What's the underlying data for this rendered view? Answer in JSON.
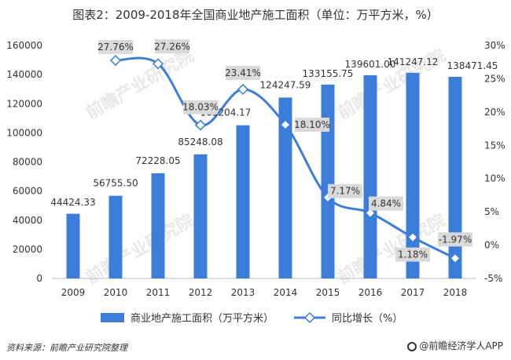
{
  "title": "图表2：2009-2018年全国商业地产施工面积（单位：万平方米，%）",
  "source": "资料来源：前瞻产业研究院整理",
  "brand": "@前瞻经济学人APP",
  "watermark": "前瞻产业研究院",
  "colors": {
    "bar": "#3b7dd8",
    "line": "#3b7dd8",
    "label_bg": "#d9d9d9"
  },
  "chart_data": {
    "type": "bar",
    "categories": [
      "2009",
      "2010",
      "2011",
      "2012",
      "2013",
      "2014",
      "2015",
      "2016",
      "2017",
      "2018"
    ],
    "series": [
      {
        "name": "商业地产施工面积（万平方米）",
        "type": "bar",
        "axis": "left",
        "values": [
          44424.33,
          56755.5,
          72228.05,
          85248.08,
          105204.17,
          124247.59,
          133155.75,
          139601.0,
          141247.12,
          138471.45
        ],
        "labels": [
          "44424.33",
          "56755.50",
          "72228.05",
          "85248.08",
          "105204.17",
          "124247.59",
          "133155.75",
          "139601.00",
          "141247.12",
          "138471.45"
        ]
      },
      {
        "name": "同比增长（%）",
        "type": "line",
        "axis": "right",
        "values": [
          null,
          27.76,
          27.26,
          18.03,
          23.41,
          18.1,
          7.17,
          4.84,
          1.18,
          -1.97
        ],
        "labels": [
          "",
          "27.76%",
          "27.26%",
          "18.03%",
          "23.41%",
          "18.10%",
          "7.17%",
          "4.84%",
          "1.18%",
          "-1.97%"
        ]
      }
    ],
    "y_left": {
      "range": [
        0,
        160000
      ],
      "ticks": [
        "0",
        "20000",
        "40000",
        "60000",
        "80000",
        "100000",
        "120000",
        "140000",
        "160000"
      ]
    },
    "y_right": {
      "range": [
        -5,
        30
      ],
      "ticks": [
        "-5%",
        "0%",
        "5%",
        "10%",
        "15%",
        "20%",
        "25%",
        "30%"
      ]
    },
    "grid": false,
    "legend_position": "bottom"
  }
}
